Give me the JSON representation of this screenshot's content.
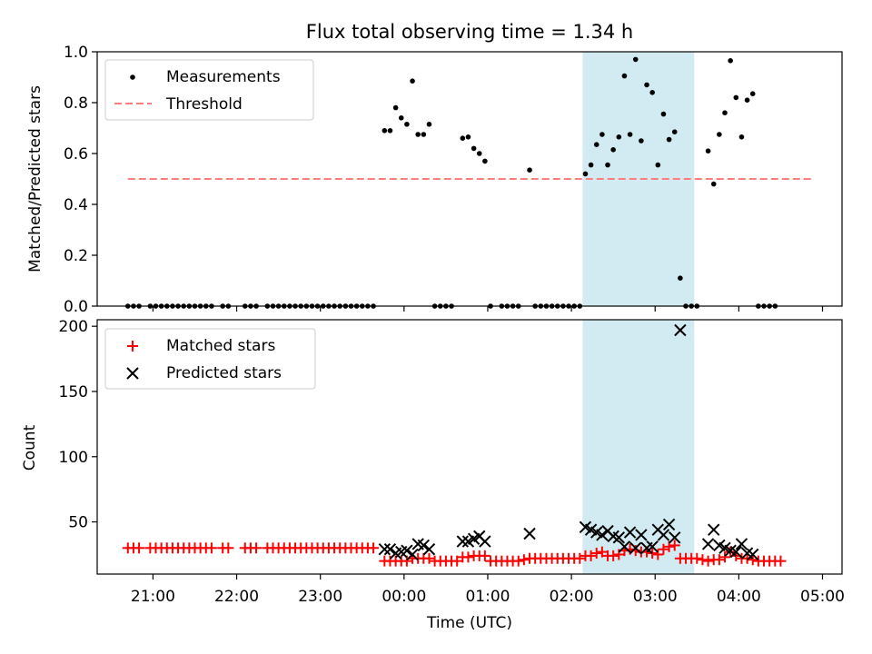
{
  "title": "Flux total observing time = 1.34 h",
  "colors": {
    "measurements": "#000000",
    "threshold": "#ff7f7f",
    "matched": "#ff0000",
    "predicted": "#000000",
    "shade": "#add8e6"
  },
  "chart_data": [
    {
      "type": "scatter",
      "ylabel": "Matched/Predicted stars",
      "xlabel": "",
      "ylim": [
        0,
        1.0
      ],
      "yticks": [
        0.0,
        0.2,
        0.4,
        0.6,
        0.8,
        1.0
      ],
      "legend_position": "top-left",
      "shaded_interval": {
        "start": "02:08",
        "end": "03:28"
      },
      "series": [
        {
          "name": "Measurements",
          "marker": "dot",
          "points": [
            [
              "20:42",
              0
            ],
            [
              "20:46",
              0
            ],
            [
              "20:50",
              0
            ],
            [
              "20:58",
              0
            ],
            [
              "21:02",
              0
            ],
            [
              "21:06",
              0
            ],
            [
              "21:10",
              0
            ],
            [
              "21:14",
              0
            ],
            [
              "21:18",
              0
            ],
            [
              "21:22",
              0
            ],
            [
              "21:26",
              0
            ],
            [
              "21:30",
              0
            ],
            [
              "21:34",
              0
            ],
            [
              "21:38",
              0
            ],
            [
              "21:42",
              0
            ],
            [
              "21:50",
              0
            ],
            [
              "21:54",
              0
            ],
            [
              "22:06",
              0
            ],
            [
              "22:10",
              0
            ],
            [
              "22:14",
              0
            ],
            [
              "22:22",
              0
            ],
            [
              "22:26",
              0
            ],
            [
              "22:30",
              0
            ],
            [
              "22:34",
              0
            ],
            [
              "22:38",
              0
            ],
            [
              "22:42",
              0
            ],
            [
              "22:46",
              0
            ],
            [
              "22:50",
              0
            ],
            [
              "22:54",
              0
            ],
            [
              "22:58",
              0
            ],
            [
              "23:02",
              0
            ],
            [
              "23:06",
              0
            ],
            [
              "23:10",
              0
            ],
            [
              "23:14",
              0
            ],
            [
              "23:18",
              0
            ],
            [
              "23:22",
              0
            ],
            [
              "23:26",
              0
            ],
            [
              "23:30",
              0
            ],
            [
              "23:34",
              0
            ],
            [
              "23:38",
              0
            ],
            [
              "23:46",
              0.69
            ],
            [
              "23:50",
              0.69
            ],
            [
              "23:54",
              0.78
            ],
            [
              "23:58",
              0.74
            ],
            [
              "00:02",
              0.715
            ],
            [
              "00:06",
              0.885
            ],
            [
              "00:10",
              0.675
            ],
            [
              "00:14",
              0.675
            ],
            [
              "00:18",
              0.715
            ],
            [
              "00:22",
              0
            ],
            [
              "00:26",
              0
            ],
            [
              "00:30",
              0
            ],
            [
              "00:34",
              0
            ],
            [
              "00:42",
              0.66
            ],
            [
              "00:46",
              0.665
            ],
            [
              "00:50",
              0.62
            ],
            [
              "00:54",
              0.6
            ],
            [
              "00:58",
              0.57
            ],
            [
              "01:02",
              0
            ],
            [
              "01:10",
              0
            ],
            [
              "01:14",
              0
            ],
            [
              "01:18",
              0
            ],
            [
              "01:22",
              0
            ],
            [
              "01:30",
              0.535
            ],
            [
              "01:34",
              0
            ],
            [
              "01:38",
              0
            ],
            [
              "01:42",
              0
            ],
            [
              "01:46",
              0
            ],
            [
              "01:50",
              0
            ],
            [
              "01:54",
              0
            ],
            [
              "01:58",
              0
            ],
            [
              "02:02",
              0
            ],
            [
              "02:06",
              0
            ],
            [
              "02:10",
              0.52
            ],
            [
              "02:14",
              0.555
            ],
            [
              "02:18",
              0.635
            ],
            [
              "02:22",
              0.675
            ],
            [
              "02:26",
              0.555
            ],
            [
              "02:30",
              0.615
            ],
            [
              "02:34",
              0.665
            ],
            [
              "02:38",
              0.905
            ],
            [
              "02:42",
              0.675
            ],
            [
              "02:46",
              0.97
            ],
            [
              "02:50",
              0.65
            ],
            [
              "02:54",
              0.87
            ],
            [
              "02:58",
              0.84
            ],
            [
              "03:02",
              0.555
            ],
            [
              "03:06",
              0.755
            ],
            [
              "03:10",
              0.655
            ],
            [
              "03:14",
              0.685
            ],
            [
              "03:18",
              0.11
            ],
            [
              "03:22",
              0
            ],
            [
              "03:26",
              0
            ],
            [
              "03:30",
              0
            ],
            [
              "03:38",
              0.61
            ],
            [
              "03:42",
              0.48
            ],
            [
              "03:46",
              0.675
            ],
            [
              "03:50",
              0.76
            ],
            [
              "03:54",
              0.965
            ],
            [
              "03:58",
              0.82
            ],
            [
              "04:02",
              0.665
            ],
            [
              "04:06",
              0.81
            ],
            [
              "04:10",
              0.835
            ],
            [
              "04:14",
              0
            ],
            [
              "04:18",
              0
            ],
            [
              "04:22",
              0
            ],
            [
              "04:26",
              0
            ]
          ]
        },
        {
          "name": "Threshold",
          "style": "dashed",
          "points": [
            [
              "20:42",
              0.5
            ],
            [
              "04:54",
              0.5
            ]
          ]
        }
      ]
    },
    {
      "type": "scatter",
      "ylabel": "Count",
      "xlabel": "Time (UTC)",
      "ylim": [
        10,
        205
      ],
      "yticks": [
        50,
        100,
        150,
        200
      ],
      "xlim": [
        "20:20",
        "05:14"
      ],
      "xticks": [
        "21:00",
        "22:00",
        "23:00",
        "00:00",
        "01:00",
        "02:00",
        "03:00",
        "04:00",
        "05:00"
      ],
      "legend_position": "top-left",
      "shaded_interval": {
        "start": "02:08",
        "end": "03:28"
      },
      "series": [
        {
          "name": "Matched stars",
          "marker": "plus",
          "points": [
            [
              "20:42",
              30
            ],
            [
              "20:46",
              30
            ],
            [
              "20:50",
              30
            ],
            [
              "20:58",
              30
            ],
            [
              "21:02",
              30
            ],
            [
              "21:06",
              30
            ],
            [
              "21:10",
              30
            ],
            [
              "21:14",
              30
            ],
            [
              "21:18",
              30
            ],
            [
              "21:22",
              30
            ],
            [
              "21:26",
              30
            ],
            [
              "21:30",
              30
            ],
            [
              "21:34",
              30
            ],
            [
              "21:38",
              30
            ],
            [
              "21:42",
              30
            ],
            [
              "21:50",
              30
            ],
            [
              "21:54",
              30
            ],
            [
              "22:06",
              30
            ],
            [
              "22:10",
              30
            ],
            [
              "22:14",
              30
            ],
            [
              "22:22",
              30
            ],
            [
              "22:26",
              30
            ],
            [
              "22:30",
              30
            ],
            [
              "22:34",
              30
            ],
            [
              "22:38",
              30
            ],
            [
              "22:42",
              30
            ],
            [
              "22:46",
              30
            ],
            [
              "22:50",
              30
            ],
            [
              "22:54",
              30
            ],
            [
              "22:58",
              30
            ],
            [
              "23:02",
              30
            ],
            [
              "23:06",
              30
            ],
            [
              "23:10",
              30
            ],
            [
              "23:14",
              30
            ],
            [
              "23:18",
              30
            ],
            [
              "23:22",
              30
            ],
            [
              "23:26",
              30
            ],
            [
              "23:30",
              30
            ],
            [
              "23:34",
              30
            ],
            [
              "23:38",
              30
            ],
            [
              "23:46",
              20
            ],
            [
              "23:50",
              20
            ],
            [
              "23:54",
              20
            ],
            [
              "23:58",
              20
            ],
            [
              "00:02",
              20
            ],
            [
              "00:06",
              22
            ],
            [
              "00:10",
              22
            ],
            [
              "00:14",
              22
            ],
            [
              "00:18",
              22
            ],
            [
              "00:22",
              20
            ],
            [
              "00:26",
              20
            ],
            [
              "00:30",
              20
            ],
            [
              "00:34",
              20
            ],
            [
              "00:38",
              20
            ],
            [
              "00:42",
              23
            ],
            [
              "00:46",
              23
            ],
            [
              "00:50",
              24
            ],
            [
              "00:54",
              24
            ],
            [
              "00:58",
              24
            ],
            [
              "01:02",
              20
            ],
            [
              "01:06",
              20
            ],
            [
              "01:10",
              20
            ],
            [
              "01:14",
              20
            ],
            [
              "01:18",
              20
            ],
            [
              "01:22",
              20
            ],
            [
              "01:26",
              21
            ],
            [
              "01:30",
              22
            ],
            [
              "01:34",
              22
            ],
            [
              "01:38",
              22
            ],
            [
              "01:42",
              22
            ],
            [
              "01:46",
              22
            ],
            [
              "01:50",
              22
            ],
            [
              "01:54",
              22
            ],
            [
              "01:58",
              22
            ],
            [
              "02:02",
              22
            ],
            [
              "02:06",
              22
            ],
            [
              "02:10",
              24
            ],
            [
              "02:14",
              24
            ],
            [
              "02:18",
              26
            ],
            [
              "02:22",
              27
            ],
            [
              "02:26",
              24
            ],
            [
              "02:30",
              24
            ],
            [
              "02:34",
              25
            ],
            [
              "02:38",
              28
            ],
            [
              "02:42",
              29
            ],
            [
              "02:46",
              28
            ],
            [
              "02:50",
              27
            ],
            [
              "02:54",
              27
            ],
            [
              "02:58",
              26
            ],
            [
              "03:02",
              25
            ],
            [
              "03:06",
              29
            ],
            [
              "03:10",
              31
            ],
            [
              "03:14",
              32
            ],
            [
              "03:18",
              22
            ],
            [
              "03:22",
              22
            ],
            [
              "03:26",
              22
            ],
            [
              "03:30",
              22
            ],
            [
              "03:34",
              21
            ],
            [
              "03:38",
              20
            ],
            [
              "03:42",
              21
            ],
            [
              "03:46",
              21
            ],
            [
              "03:50",
              23
            ],
            [
              "03:54",
              27
            ],
            [
              "03:58",
              24
            ],
            [
              "04:02",
              22
            ],
            [
              "04:06",
              22
            ],
            [
              "04:10",
              21
            ],
            [
              "04:14",
              20
            ],
            [
              "04:18",
              20
            ],
            [
              "04:22",
              20
            ],
            [
              "04:26",
              20
            ],
            [
              "04:30",
              20
            ]
          ]
        },
        {
          "name": "Predicted stars",
          "marker": "x",
          "points": [
            [
              "23:46",
              29
            ],
            [
              "23:50",
              29
            ],
            [
              "23:54",
              26
            ],
            [
              "23:58",
              27
            ],
            [
              "00:02",
              28
            ],
            [
              "00:06",
              25
            ],
            [
              "00:10",
              33
            ],
            [
              "00:14",
              32
            ],
            [
              "00:18",
              29
            ],
            [
              "00:42",
              35
            ],
            [
              "00:46",
              35
            ],
            [
              "00:50",
              37
            ],
            [
              "00:54",
              39
            ],
            [
              "00:58",
              35
            ],
            [
              "01:30",
              41
            ],
            [
              "02:10",
              46
            ],
            [
              "02:14",
              44
            ],
            [
              "02:18",
              42
            ],
            [
              "02:22",
              40
            ],
            [
              "02:26",
              43
            ],
            [
              "02:30",
              39
            ],
            [
              "02:34",
              38
            ],
            [
              "02:38",
              31
            ],
            [
              "02:42",
              42
            ],
            [
              "02:46",
              30
            ],
            [
              "02:50",
              40
            ],
            [
              "02:54",
              30
            ],
            [
              "02:58",
              31
            ],
            [
              "03:02",
              44
            ],
            [
              "03:06",
              40
            ],
            [
              "03:10",
              48
            ],
            [
              "03:14",
              38
            ],
            [
              "03:18",
              197
            ],
            [
              "03:38",
              33
            ],
            [
              "03:42",
              44
            ],
            [
              "03:46",
              32
            ],
            [
              "03:50",
              30
            ],
            [
              "03:54",
              28
            ],
            [
              "03:58",
              27
            ],
            [
              "04:02",
              33
            ],
            [
              "04:06",
              26
            ],
            [
              "04:10",
              25
            ]
          ]
        }
      ]
    }
  ]
}
